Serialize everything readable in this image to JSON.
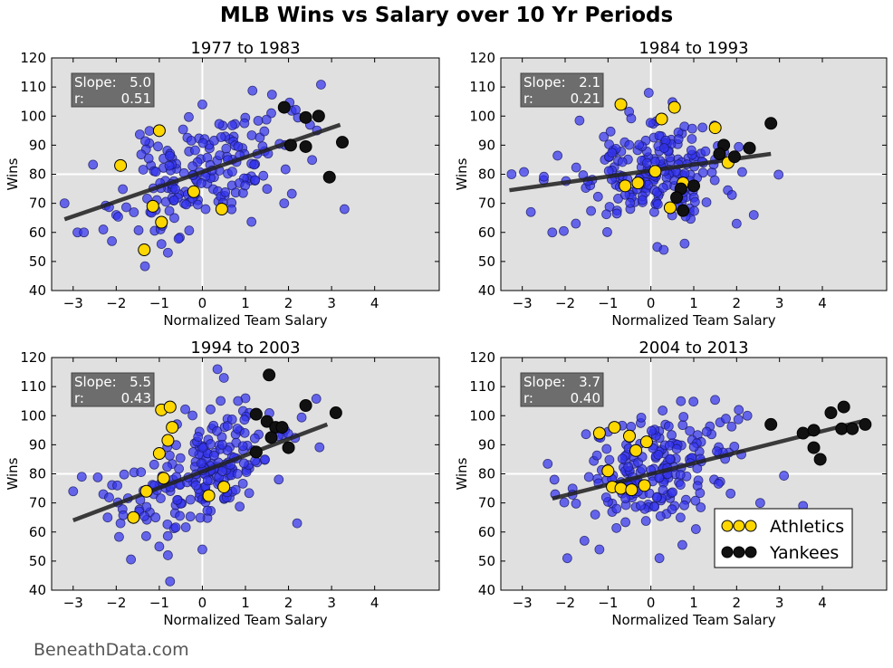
{
  "title": "MLB Wins vs Salary over 10 Yr Periods",
  "watermark": "BeneathData.com",
  "colors": {
    "panel_bg": "#e0e0e0",
    "league_point": "#3333ee",
    "athletics": "#ffd700",
    "yankees": "#111111",
    "trend_line": "#222222",
    "stat_box": "#666666"
  },
  "legend": {
    "items": [
      {
        "label": "Athletics"
      },
      {
        "label": "Yankees"
      }
    ],
    "placement": "lower-right of 2004 to 2013 panel"
  },
  "chart_data": [
    {
      "type": "scatter",
      "title": "1977 to 1983",
      "xlabel": "Normalized Team Salary",
      "ylabel": "Wins",
      "xlim": [
        -3.5,
        5.5
      ],
      "ylim": [
        40,
        120
      ],
      "xticks": [
        -3,
        -2,
        -1,
        0,
        1,
        2,
        3,
        4
      ],
      "yticks": [
        40,
        50,
        60,
        70,
        80,
        90,
        100,
        110,
        120
      ],
      "stats": {
        "slope_label": "Slope:",
        "slope": "5.0",
        "r_label": "r:",
        "r": "0.51"
      },
      "trend": {
        "x": [
          -3.2,
          3.2
        ],
        "y": [
          64.5,
          97
        ]
      },
      "athletics": [
        [
          -1.9,
          83
        ],
        [
          -1.0,
          95
        ],
        [
          -1.15,
          69
        ],
        [
          -0.95,
          63.5
        ],
        [
          -1.35,
          54
        ],
        [
          -0.2,
          74
        ],
        [
          0.45,
          68
        ]
      ],
      "yankees": [
        [
          1.9,
          103
        ],
        [
          2.4,
          99.5
        ],
        [
          2.7,
          100
        ],
        [
          2.05,
          90
        ],
        [
          2.4,
          89.5
        ],
        [
          2.95,
          79
        ],
        [
          3.25,
          91
        ]
      ],
      "league_seed": 11,
      "league_count": 175,
      "league_sd": 9,
      "league_anchors": [
        [
          -3.2,
          70
        ],
        [
          -2.9,
          60
        ],
        [
          -2.75,
          60
        ],
        [
          -2.3,
          61
        ],
        [
          -2.1,
          57
        ],
        [
          -2.0,
          66
        ],
        [
          0.0,
          104
        ],
        [
          1.6,
          101
        ],
        [
          2.5,
          97
        ],
        [
          3.3,
          68
        ],
        [
          1.9,
          70
        ],
        [
          -0.95,
          56
        ],
        [
          -0.8,
          53
        ]
      ]
    },
    {
      "type": "scatter",
      "title": "1984 to 1993",
      "xlabel": "Normalized Team Salary",
      "ylabel": "Wins",
      "xlim": [
        -3.5,
        5.5
      ],
      "ylim": [
        40,
        120
      ],
      "xticks": [
        -3,
        -2,
        -1,
        0,
        1,
        2,
        3,
        4
      ],
      "yticks": [
        40,
        50,
        60,
        70,
        80,
        90,
        100,
        110,
        120
      ],
      "stats": {
        "slope_label": "Slope:",
        "slope": "2.1",
        "r_label": "r:",
        "r": "0.21"
      },
      "trend": {
        "x": [
          -3.3,
          2.8
        ],
        "y": [
          74.5,
          87
        ]
      },
      "athletics": [
        [
          -0.7,
          104
        ],
        [
          0.55,
          103
        ],
        [
          0.25,
          99
        ],
        [
          1.5,
          96
        ],
        [
          -0.6,
          76
        ],
        [
          -0.3,
          77
        ],
        [
          0.1,
          81
        ],
        [
          0.45,
          68.5
        ],
        [
          0.75,
          77
        ],
        [
          1.8,
          84
        ]
      ],
      "yankees": [
        [
          2.8,
          97.5
        ],
        [
          1.7,
          90
        ],
        [
          1.6,
          87
        ],
        [
          1.95,
          86
        ],
        [
          2.3,
          89
        ],
        [
          1.0,
          76
        ],
        [
          0.7,
          75
        ],
        [
          0.75,
          67.5
        ],
        [
          0.6,
          72
        ]
      ],
      "league_seed": 22,
      "league_count": 200,
      "league_sd": 8,
      "league_anchors": [
        [
          -3.25,
          80
        ],
        [
          -2.8,
          67
        ],
        [
          -2.3,
          60
        ],
        [
          -0.05,
          108
        ],
        [
          2.4,
          66
        ],
        [
          0.15,
          55
        ],
        [
          0.3,
          54
        ],
        [
          -2.5,
          78
        ],
        [
          2.0,
          63
        ]
      ]
    },
    {
      "type": "scatter",
      "title": "1994 to 2003",
      "xlabel": "Normalized Team Salary",
      "ylabel": "Wins",
      "xlim": [
        -3.5,
        5.5
      ],
      "ylim": [
        40,
        120
      ],
      "xticks": [
        -3,
        -2,
        -1,
        0,
        1,
        2,
        3,
        4
      ],
      "yticks": [
        40,
        50,
        60,
        70,
        80,
        90,
        100,
        110,
        120
      ],
      "stats": {
        "slope_label": "Slope:",
        "slope": "5.5",
        "r_label": "r:",
        "r": "0.43"
      },
      "trend": {
        "x": [
          -3.0,
          2.9
        ],
        "y": [
          64,
          97
        ]
      },
      "athletics": [
        [
          -0.95,
          102
        ],
        [
          -0.75,
          103
        ],
        [
          -0.7,
          96
        ],
        [
          -0.8,
          91.5
        ],
        [
          -1.0,
          87
        ],
        [
          -0.9,
          78.5
        ],
        [
          -1.3,
          74
        ],
        [
          -1.6,
          65
        ],
        [
          0.15,
          72.5
        ],
        [
          0.5,
          75.5
        ]
      ],
      "yankees": [
        [
          1.55,
          114
        ],
        [
          2.4,
          103.5
        ],
        [
          3.1,
          101
        ],
        [
          1.25,
          100.5
        ],
        [
          1.5,
          98
        ],
        [
          1.7,
          96
        ],
        [
          1.85,
          96
        ],
        [
          1.6,
          92.5
        ],
        [
          2.0,
          89
        ],
        [
          1.25,
          87.5
        ]
      ],
      "league_seed": 33,
      "league_count": 205,
      "league_sd": 9,
      "league_anchors": [
        [
          -3.0,
          74
        ],
        [
          -2.8,
          79
        ],
        [
          -2.3,
          73
        ],
        [
          -2.2,
          65
        ],
        [
          -1.9,
          63
        ],
        [
          -1.0,
          55
        ],
        [
          -0.8,
          52
        ],
        [
          -0.75,
          43
        ],
        [
          0.35,
          116
        ],
        [
          0.5,
          113
        ],
        [
          2.2,
          63
        ],
        [
          1.0,
          106
        ],
        [
          0.0,
          54
        ]
      ]
    },
    {
      "type": "scatter",
      "title": "2004 to 2013",
      "xlabel": "Normalized Team Salary",
      "ylabel": "Wins",
      "xlim": [
        -3.5,
        5.5
      ],
      "ylim": [
        40,
        120
      ],
      "xticks": [
        -3,
        -2,
        -1,
        0,
        1,
        2,
        3,
        4
      ],
      "yticks": [
        40,
        50,
        60,
        70,
        80,
        90,
        100,
        110,
        120
      ],
      "stats": {
        "slope_label": "Slope:",
        "slope": "3.7",
        "r_label": "r:",
        "r": "0.40"
      },
      "trend": {
        "x": [
          -2.3,
          4.9
        ],
        "y": [
          71.5,
          98
        ]
      },
      "athletics": [
        [
          -1.2,
          94
        ],
        [
          -0.85,
          96
        ],
        [
          -0.5,
          93
        ],
        [
          -0.35,
          88
        ],
        [
          -0.1,
          91
        ],
        [
          -1.0,
          81
        ],
        [
          -0.9,
          75.5
        ],
        [
          -0.7,
          75
        ],
        [
          -0.45,
          74.5
        ],
        [
          -0.15,
          76
        ]
      ],
      "yankees": [
        [
          2.8,
          97
        ],
        [
          3.55,
          94
        ],
        [
          3.8,
          95
        ],
        [
          4.2,
          101
        ],
        [
          4.5,
          103
        ],
        [
          4.45,
          95.5
        ],
        [
          4.7,
          95.5
        ],
        [
          5.0,
          97
        ],
        [
          3.8,
          89
        ],
        [
          3.95,
          85
        ]
      ],
      "league_seed": 44,
      "league_count": 200,
      "league_sd": 8.5,
      "league_anchors": [
        [
          -2.25,
          78
        ],
        [
          -1.95,
          51
        ],
        [
          -1.55,
          57
        ],
        [
          -1.3,
          66
        ],
        [
          0.2,
          51
        ],
        [
          0.7,
          105
        ],
        [
          2.05,
          102
        ],
        [
          2.25,
          100
        ],
        [
          3.55,
          69
        ],
        [
          2.55,
          70
        ],
        [
          1.05,
          61
        ],
        [
          -1.2,
          54
        ]
      ]
    }
  ]
}
